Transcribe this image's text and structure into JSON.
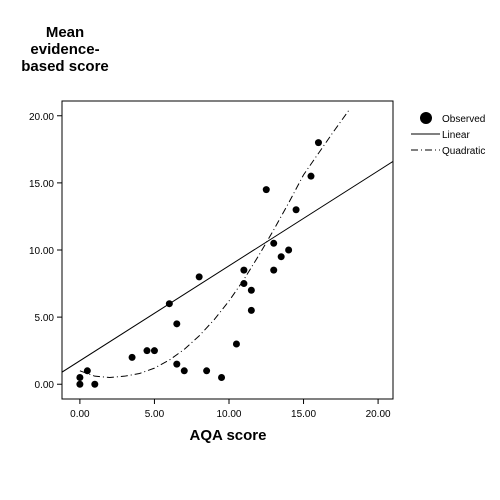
{
  "chart_data": {
    "type": "scatter",
    "ylabel": [
      "Mean",
      "evidence-",
      "based score"
    ],
    "xlabel": "AQA score",
    "xlim": [
      -1.2,
      21.0
    ],
    "ylim": [
      -1.1,
      21.1
    ],
    "xticks": [
      0,
      5,
      10,
      15,
      20
    ],
    "xtick_labels": [
      "0.00",
      "5.00",
      "10.00",
      "15.00",
      "20.00"
    ],
    "yticks": [
      0,
      5,
      10,
      15,
      20
    ],
    "ytick_labels": [
      "0.00",
      "5.00",
      "10.00",
      "15.00",
      "20.00"
    ],
    "grid": false,
    "legend_position": "right",
    "legend": [
      {
        "key": "observed",
        "label": "Observed",
        "style": "marker"
      },
      {
        "key": "linear",
        "label": "Linear",
        "style": "solid"
      },
      {
        "key": "quadratic",
        "label": "Quadratic",
        "style": "dashdot"
      }
    ],
    "series": [
      {
        "name": "Observed",
        "points": [
          [
            0,
            0
          ],
          [
            0,
            0.5
          ],
          [
            0.5,
            1
          ],
          [
            1,
            0
          ],
          [
            3.5,
            2
          ],
          [
            4.5,
            2.5
          ],
          [
            5,
            2.5
          ],
          [
            6,
            6
          ],
          [
            6.5,
            4.5
          ],
          [
            6.5,
            1.5
          ],
          [
            7,
            1
          ],
          [
            8,
            8
          ],
          [
            8.5,
            1
          ],
          [
            9.5,
            0.5
          ],
          [
            10.5,
            3
          ],
          [
            11,
            8.5
          ],
          [
            11,
            7.5
          ],
          [
            11.5,
            7
          ],
          [
            11.5,
            5.5
          ],
          [
            12.5,
            14.5
          ],
          [
            13,
            10.5
          ],
          [
            13,
            8.5
          ],
          [
            13.5,
            9.5
          ],
          [
            14,
            10
          ],
          [
            14.5,
            13
          ],
          [
            15.5,
            15.5
          ],
          [
            16,
            18
          ]
        ]
      },
      {
        "name": "Linear",
        "x_range": [
          -1.2,
          21.0
        ],
        "points": [
          [
            -1.2,
            0.9
          ],
          [
            21.0,
            16.6
          ]
        ]
      },
      {
        "name": "Quadratic",
        "x_range": [
          0,
          18.1
        ],
        "points": [
          [
            0,
            1
          ],
          [
            1,
            0.6
          ],
          [
            2,
            0.5
          ],
          [
            3,
            0.6
          ],
          [
            4,
            0.8
          ],
          [
            5,
            1.2
          ],
          [
            6,
            1.8
          ],
          [
            7,
            2.6
          ],
          [
            8,
            3.6
          ],
          [
            9,
            4.8
          ],
          [
            10,
            6.2
          ],
          [
            11,
            7.8
          ],
          [
            12,
            9.6
          ],
          [
            13,
            11.5
          ],
          [
            14,
            13.5
          ],
          [
            15,
            15.6
          ],
          [
            16,
            17.2
          ],
          [
            17,
            18.8
          ],
          [
            18.1,
            20.5
          ]
        ]
      }
    ]
  }
}
